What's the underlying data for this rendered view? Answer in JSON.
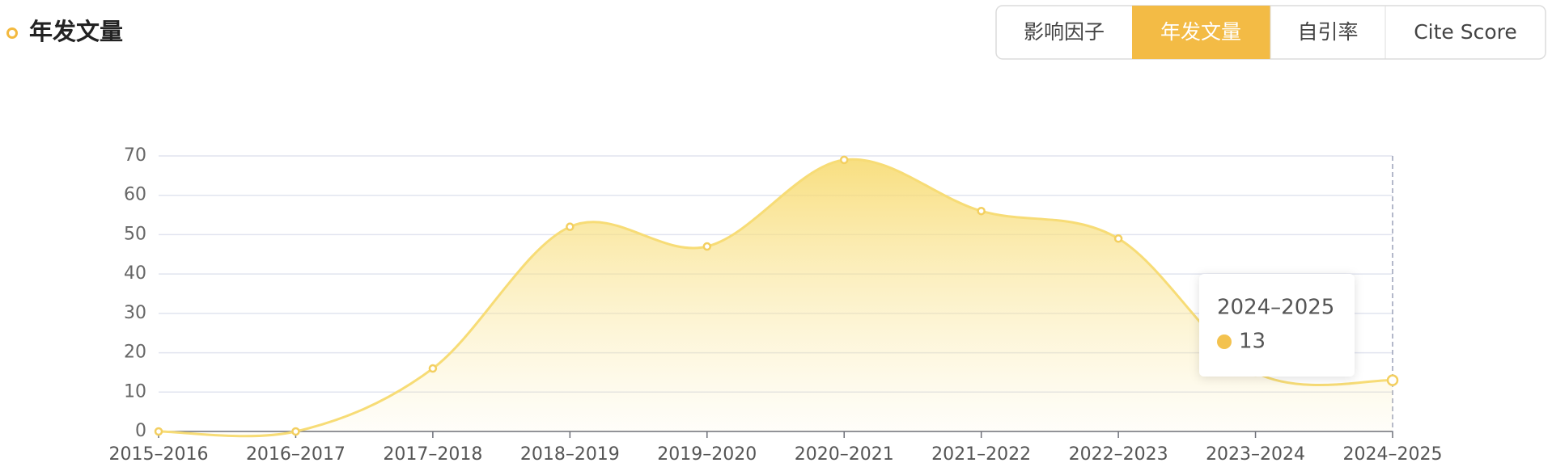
{
  "chart_data": {
    "type": "line",
    "title": "年发文量",
    "categories": [
      "2015–2016",
      "2016–2017",
      "2017–2018",
      "2018–2019",
      "2019–2020",
      "2020–2021",
      "2021–2022",
      "2022–2023",
      "2023–2024",
      "2024–2025"
    ],
    "values": [
      0,
      0,
      16,
      52,
      47,
      69,
      56,
      49,
      15,
      13
    ],
    "color": "#f7dc76",
    "ylim": [
      0,
      70
    ],
    "yticks": [
      0,
      10,
      20,
      30,
      40,
      50,
      60,
      70
    ],
    "grid": true,
    "smooth": true,
    "area": true
  },
  "tabs": [
    "影响因子",
    "年发文量",
    "自引率",
    "Cite Score"
  ]
}
